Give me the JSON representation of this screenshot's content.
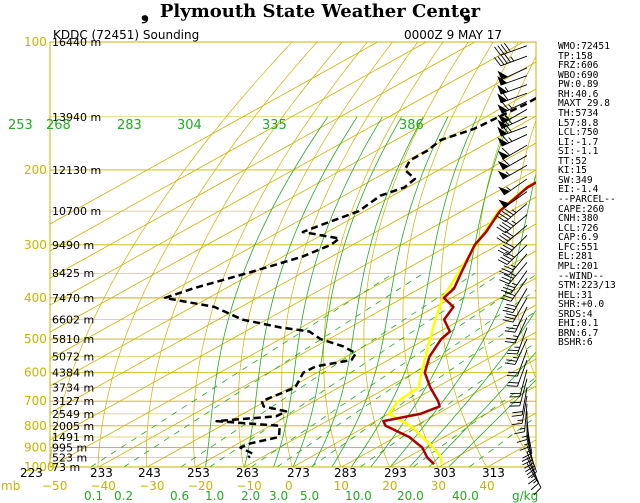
{
  "header": {
    "title": "Plymouth State Weather Center",
    "left_glyph": "❟",
    "right_glyph": "❟"
  },
  "colors": {
    "isotherm": "#c8b400",
    "isobar": "#c8b400",
    "dry_adiabat": "#c8b400",
    "moist_adiabat": "#22aa22",
    "mixing_ratio": "#22aa22",
    "theta_e_label": "#22aa22",
    "temperature": "#aa0000",
    "dewpoint": "#000000",
    "parcel": "#ffff00",
    "wind_barb": "#000000"
  },
  "chart_data": {
    "type": "skew-t",
    "title": "KDDC (72451) Sounding",
    "time_label": "0000Z  9 MAY 17",
    "pressure_axis": {
      "label": "mb",
      "ticks": [
        100,
        200,
        300,
        400,
        500,
        600,
        700,
        800,
        900,
        1000
      ],
      "range": [
        100,
        1000
      ]
    },
    "temperature_axis": {
      "ticks": [
        -50,
        -40,
        -30,
        -20,
        -10,
        0,
        10,
        20,
        30,
        40
      ],
      "range": [
        -50,
        50
      ]
    },
    "height_labels": [
      {
        "p": 100,
        "label": "16440 m"
      },
      {
        "p": 150,
        "label": "13940 m"
      },
      {
        "p": 200,
        "label": "12130 m"
      },
      {
        "p": 250,
        "label": "10700 m"
      },
      {
        "p": 300,
        "label": "9490 m"
      },
      {
        "p": 350,
        "label": "8425 m"
      },
      {
        "p": 400,
        "label": "7470 m"
      },
      {
        "p": 450,
        "label": "6602 m"
      },
      {
        "p": 500,
        "label": "5810 m"
      },
      {
        "p": 550,
        "label": "5072 m"
      },
      {
        "p": 600,
        "label": "4384 m"
      },
      {
        "p": 650,
        "label": "3734 m"
      },
      {
        "p": 700,
        "label": "3127 m"
      },
      {
        "p": 750,
        "label": "2549 m"
      },
      {
        "p": 800,
        "label": "2005 m"
      },
      {
        "p": 850,
        "label": "1491 m"
      },
      {
        "p": 900,
        "label": "995 m"
      },
      {
        "p": 950,
        "label": "523 m"
      },
      {
        "p": 1000,
        "label": "73 m"
      }
    ],
    "theta_top_labels": [
      "253",
      "268",
      "283",
      "304",
      "335",
      "386"
    ],
    "theta_bottom_labels": [
      "223",
      "233",
      "243",
      "253",
      "263",
      "273",
      "283",
      "293",
      "303",
      "313"
    ],
    "mixing_ratio_labels": [
      "0.1",
      "0.2",
      "0.6",
      "1.0",
      "2.0",
      "3.0",
      "5.0",
      "10.0",
      "20.0",
      "40.0"
    ],
    "mixing_ratio_unit": "g/kg",
    "temperature_profile": [
      [
        100,
        -58.5
      ],
      [
        110,
        -57.8
      ],
      [
        120,
        -56.6
      ],
      [
        130,
        -55.9
      ],
      [
        140,
        -55.5
      ],
      [
        150,
        -53.0
      ],
      [
        160,
        -53.0
      ],
      [
        170,
        -53.0
      ],
      [
        180,
        -52.0
      ],
      [
        190,
        -53.4
      ],
      [
        200,
        -54.5
      ],
      [
        210,
        -55.4
      ],
      [
        220,
        -55.3
      ],
      [
        250,
        -52.2
      ],
      [
        280,
        -47.3
      ],
      [
        300,
        -44.9
      ],
      [
        320,
        -41.7
      ],
      [
        350,
        -37.2
      ],
      [
        380,
        -33.0
      ],
      [
        400,
        -31.6
      ],
      [
        420,
        -26.3
      ],
      [
        450,
        -23.5
      ],
      [
        480,
        -17.9
      ],
      [
        500,
        -16.9
      ],
      [
        550,
        -12.8
      ],
      [
        600,
        -7.8
      ],
      [
        650,
        -1.2
      ],
      [
        700,
        5.5
      ],
      [
        720,
        7.7
      ],
      [
        750,
        6.5
      ],
      [
        780,
        1.6
      ],
      [
        800,
        3.8
      ],
      [
        850,
        12.8
      ],
      [
        900,
        19.4
      ],
      [
        950,
        24.1
      ],
      [
        985,
        28.0
      ]
    ],
    "dewpoint_profile": [
      [
        100,
        -85.4
      ],
      [
        105,
        -85.3
      ],
      [
        110,
        -84.6
      ],
      [
        120,
        -86.3
      ],
      [
        130,
        -86.7
      ],
      [
        140,
        -86.5
      ],
      [
        150,
        -87.3
      ],
      [
        160,
        -88.0
      ],
      [
        170,
        -90.7
      ],
      [
        180,
        -89.5
      ],
      [
        190,
        -89.5
      ],
      [
        200,
        -87.0
      ],
      [
        210,
        -81.6
      ],
      [
        220,
        -80.6
      ],
      [
        230,
        -82.5
      ],
      [
        250,
        -81.2
      ],
      [
        270,
        -83.9
      ],
      [
        280,
        -85.0
      ],
      [
        290,
        -75.1
      ],
      [
        300,
        -74.5
      ],
      [
        320,
        -76.0
      ],
      [
        350,
        -81.2
      ],
      [
        380,
        -86.7
      ],
      [
        400,
        -89.0
      ],
      [
        420,
        -75.5
      ],
      [
        450,
        -65.0
      ],
      [
        470,
        -54.0
      ],
      [
        480,
        -46.8
      ],
      [
        500,
        -41.7
      ],
      [
        520,
        -34.4
      ],
      [
        540,
        -29.2
      ],
      [
        560,
        -27.6
      ],
      [
        580,
        -32.6
      ],
      [
        600,
        -32.8
      ],
      [
        650,
        -29.0
      ],
      [
        700,
        -30.8
      ],
      [
        720,
        -28.5
      ],
      [
        740,
        -22.0
      ],
      [
        760,
        -22.2
      ],
      [
        780,
        -32.7
      ],
      [
        800,
        -18.0
      ],
      [
        850,
        -14.0
      ],
      [
        880,
        -17.5
      ],
      [
        900,
        -18.0
      ],
      [
        930,
        -13.3
      ],
      [
        950,
        -12.7
      ]
    ],
    "parcel_profile": [
      [
        215,
        -56.0
      ],
      [
        250,
        -52.5
      ],
      [
        300,
        -44.6
      ],
      [
        350,
        -37.8
      ],
      [
        400,
        -31.8
      ],
      [
        450,
        -25.3
      ],
      [
        500,
        -19.2
      ],
      [
        550,
        -13.6
      ],
      [
        600,
        -8.5
      ],
      [
        650,
        -3.6
      ],
      [
        700,
        -2.8
      ],
      [
        750,
        0.0
      ],
      [
        800,
        8.9
      ],
      [
        850,
        15.5
      ],
      [
        900,
        21.7
      ],
      [
        950,
        27.0
      ],
      [
        985,
        29.5
      ]
    ],
    "wind_barbs": [
      {
        "p": 102,
        "dir": 250,
        "spd": 40
      },
      {
        "p": 108,
        "dir": 250,
        "spd": 45
      },
      {
        "p": 115,
        "dir": 245,
        "spd": 50
      },
      {
        "p": 120,
        "dir": 250,
        "spd": 50
      },
      {
        "p": 126,
        "dir": 250,
        "spd": 55
      },
      {
        "p": 132,
        "dir": 250,
        "spd": 60
      },
      {
        "p": 138,
        "dir": 245,
        "spd": 65
      },
      {
        "p": 144,
        "dir": 240,
        "spd": 60
      },
      {
        "p": 150,
        "dir": 245,
        "spd": 70
      },
      {
        "p": 158,
        "dir": 250,
        "spd": 70
      },
      {
        "p": 165,
        "dir": 245,
        "spd": 65
      },
      {
        "p": 175,
        "dir": 240,
        "spd": 60
      },
      {
        "p": 185,
        "dir": 240,
        "spd": 60
      },
      {
        "p": 195,
        "dir": 240,
        "spd": 55
      },
      {
        "p": 210,
        "dir": 235,
        "spd": 55
      },
      {
        "p": 225,
        "dir": 235,
        "spd": 50
      },
      {
        "p": 240,
        "dir": 230,
        "spd": 45
      },
      {
        "p": 255,
        "dir": 230,
        "spd": 45
      },
      {
        "p": 270,
        "dir": 230,
        "spd": 40
      },
      {
        "p": 285,
        "dir": 225,
        "spd": 40
      },
      {
        "p": 300,
        "dir": 225,
        "spd": 40
      },
      {
        "p": 315,
        "dir": 220,
        "spd": 35
      },
      {
        "p": 330,
        "dir": 220,
        "spd": 35
      },
      {
        "p": 345,
        "dir": 215,
        "spd": 35
      },
      {
        "p": 360,
        "dir": 215,
        "spd": 30
      },
      {
        "p": 380,
        "dir": 210,
        "spd": 30
      },
      {
        "p": 400,
        "dir": 210,
        "spd": 30
      },
      {
        "p": 420,
        "dir": 205,
        "spd": 25
      },
      {
        "p": 445,
        "dir": 205,
        "spd": 25
      },
      {
        "p": 470,
        "dir": 200,
        "spd": 25
      },
      {
        "p": 500,
        "dir": 205,
        "spd": 25
      },
      {
        "p": 530,
        "dir": 200,
        "spd": 20
      },
      {
        "p": 560,
        "dir": 200,
        "spd": 20
      },
      {
        "p": 590,
        "dir": 195,
        "spd": 20
      },
      {
        "p": 620,
        "dir": 195,
        "spd": 20
      },
      {
        "p": 650,
        "dir": 190,
        "spd": 20
      },
      {
        "p": 680,
        "dir": 190,
        "spd": 15
      },
      {
        "p": 710,
        "dir": 185,
        "spd": 15
      },
      {
        "p": 740,
        "dir": 180,
        "spd": 15
      },
      {
        "p": 770,
        "dir": 175,
        "spd": 15
      },
      {
        "p": 800,
        "dir": 170,
        "spd": 15
      },
      {
        "p": 830,
        "dir": 170,
        "spd": 20
      },
      {
        "p": 860,
        "dir": 165,
        "spd": 20
      },
      {
        "p": 890,
        "dir": 160,
        "spd": 20
      },
      {
        "p": 920,
        "dir": 160,
        "spd": 15
      },
      {
        "p": 950,
        "dir": 155,
        "spd": 15
      },
      {
        "p": 980,
        "dir": 150,
        "spd": 10
      }
    ],
    "indices": [
      "WMO:72451",
      "TP:158",
      "FRZ:606",
      "WBO:690",
      "PW:0.89",
      "RH:40.6",
      "MAXT 29.8",
      "TH:5734",
      "L57:8.8",
      "LCL:750",
      "LI:-1.7",
      "SI:-1.1",
      "TT:52",
      "KI:15",
      "SW:349",
      "EI:-1.4",
      "--PARCEL--",
      "CAPE:260",
      "CNH:380",
      "LCL:726",
      "CAP:6.9",
      "LFC:551",
      "EL:281",
      "MPL:201",
      "--WIND--",
      "STM:223/13",
      "HEL:31",
      "SHR:+0.0",
      "SRDS:4",
      "EHI:0.1",
      "BRN:6.7",
      "BSHR:6"
    ]
  }
}
